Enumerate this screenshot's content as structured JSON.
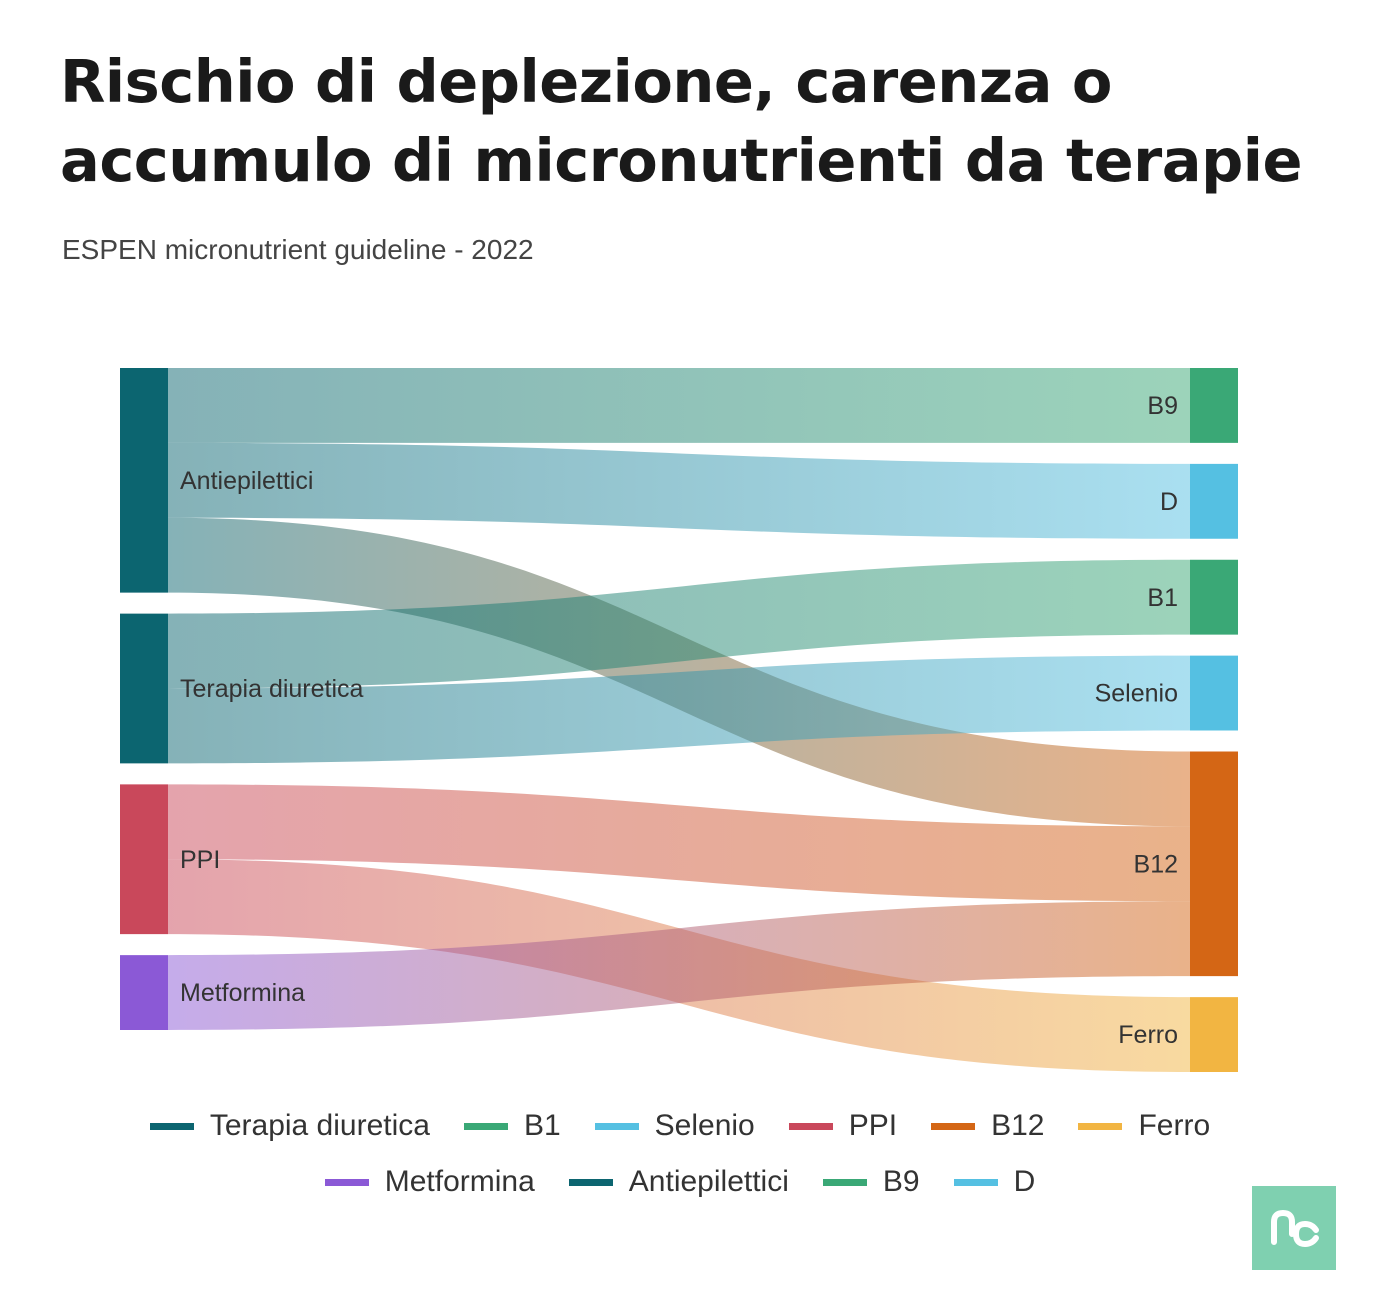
{
  "header": {
    "title": "Rischio di deplezione, carenza o accumulo di micronutrienti da terapie",
    "subtitle": "ESPEN micronutrient guideline - 2022"
  },
  "chart_data": {
    "type": "sankey",
    "title": "Rischio di deplezione, carenza o accumulo di micronutrienti da terapie",
    "subtitle": "ESPEN micronutrient guideline - 2022",
    "sources": [
      {
        "name": "Antiepilettici",
        "color": "#0c6570"
      },
      {
        "name": "Terapia diuretica",
        "color": "#0c6570"
      },
      {
        "name": "PPI",
        "color": "#c9485b"
      },
      {
        "name": "Metformina",
        "color": "#8b59d6"
      }
    ],
    "targets": [
      {
        "name": "B9",
        "color": "#3aa876"
      },
      {
        "name": "D",
        "color": "#55c0e2"
      },
      {
        "name": "B1",
        "color": "#3aa876"
      },
      {
        "name": "Selenio",
        "color": "#55c0e2"
      },
      {
        "name": "B12",
        "color": "#d46615"
      },
      {
        "name": "Ferro",
        "color": "#f2b542"
      }
    ],
    "links": [
      {
        "source": "Antiepilettici",
        "target": "B9",
        "value": 1
      },
      {
        "source": "Antiepilettici",
        "target": "B12",
        "value": 1
      },
      {
        "source": "Antiepilettici",
        "target": "D",
        "value": 1
      },
      {
        "source": "Terapia diuretica",
        "target": "B1",
        "value": 1
      },
      {
        "source": "Terapia diuretica",
        "target": "Selenio",
        "value": 1
      },
      {
        "source": "PPI",
        "target": "B12",
        "value": 1
      },
      {
        "source": "PPI",
        "target": "Ferro",
        "value": 1
      },
      {
        "source": "Metformina",
        "target": "B12",
        "value": 1
      }
    ],
    "legend": [
      {
        "label": "Terapia diuretica",
        "color": "#0c6570"
      },
      {
        "label": "B1",
        "color": "#3aa876"
      },
      {
        "label": "Selenio",
        "color": "#55c0e2"
      },
      {
        "label": "PPI",
        "color": "#c9485b"
      },
      {
        "label": "B12",
        "color": "#d46615"
      },
      {
        "label": "Ferro",
        "color": "#f2b542"
      },
      {
        "label": "Metformina",
        "color": "#8b59d6"
      },
      {
        "label": "Antiepilettici",
        "color": "#0c6570"
      },
      {
        "label": "B9",
        "color": "#3aa876"
      },
      {
        "label": "D",
        "color": "#55c0e2"
      }
    ]
  }
}
